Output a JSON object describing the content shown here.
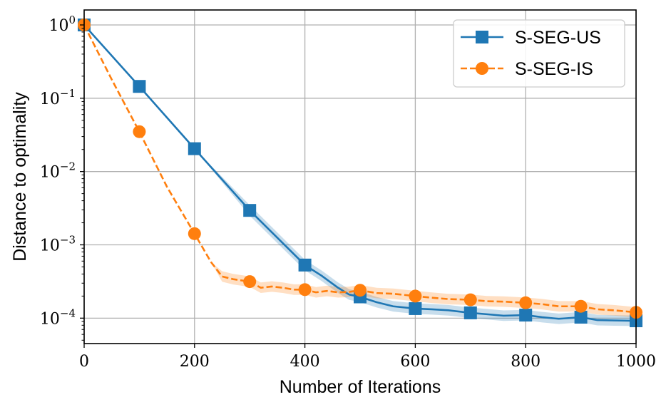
{
  "chart_data": {
    "type": "line",
    "xlabel": "Number of Iterations",
    "ylabel": "Distance to optimality",
    "xlim": [
      0,
      1000
    ],
    "ylim": [
      4.5e-05,
      1.6
    ],
    "yscale": "log",
    "grid": true,
    "legend_position": "top-right",
    "x_ticks": [
      0,
      200,
      400,
      600,
      800,
      1000
    ],
    "x_tick_labels": [
      "0",
      "200",
      "400",
      "600",
      "800",
      "1000"
    ],
    "y_ticks": [
      1,
      0.1,
      0.01,
      0.001,
      0.0001
    ],
    "y_tick_bases": [
      "10",
      "10",
      "10",
      "10",
      "10"
    ],
    "y_tick_exps": [
      "0",
      "−1",
      "−2",
      "−3",
      "−4"
    ],
    "series": [
      {
        "name": "S-SEG-US",
        "color": "#1f77b4",
        "linestyle": "solid",
        "marker": "square",
        "x": [
          0,
          100,
          200,
          300,
          400,
          430,
          460,
          480,
          500,
          530,
          560,
          600,
          630,
          660,
          700,
          730,
          760,
          800,
          830,
          860,
          900,
          930,
          960,
          1000
        ],
        "y": [
          1.0,
          0.145,
          0.0205,
          0.00295,
          0.00053,
          0.00038,
          0.00026,
          0.00021,
          0.000195,
          0.000165,
          0.000145,
          0.000135,
          0.000132,
          0.000128,
          0.000118,
          0.000113,
          0.000108,
          0.00011,
          0.000103,
          9.8e-05,
          0.000103,
          9.4e-05,
          9.3e-05,
          9.2e-05
        ],
        "markers_x": [
          0,
          100,
          200,
          300,
          400,
          500,
          600,
          700,
          800,
          900,
          1000
        ],
        "markers_y": [
          1.0,
          0.145,
          0.0205,
          0.00295,
          0.00053,
          0.000195,
          0.000135,
          0.000118,
          0.00011,
          0.000103,
          9.2e-05
        ]
      },
      {
        "name": "S-SEG-IS",
        "color": "#ff7f0e",
        "linestyle": "dashed",
        "marker": "circle",
        "x": [
          0,
          50,
          100,
          150,
          200,
          230,
          250,
          270,
          300,
          320,
          340,
          360,
          380,
          400,
          420,
          440,
          460,
          480,
          500,
          530,
          560,
          600,
          630,
          660,
          700,
          730,
          760,
          800,
          830,
          860,
          900,
          930,
          960,
          1000
        ],
        "y": [
          1.0,
          0.18,
          0.035,
          0.0062,
          0.00142,
          0.00058,
          0.00037,
          0.00034,
          0.000315,
          0.00026,
          0.00027,
          0.00026,
          0.000245,
          0.000245,
          0.000225,
          0.000235,
          0.000225,
          0.000228,
          0.00024,
          0.00022,
          0.000215,
          0.0002,
          0.00019,
          0.000182,
          0.000178,
          0.00017,
          0.000168,
          0.000162,
          0.000155,
          0.000145,
          0.000145,
          0.000132,
          0.000128,
          0.00012
        ],
        "markers_x": [
          0,
          100,
          200,
          300,
          400,
          500,
          600,
          700,
          800,
          900,
          1000
        ],
        "markers_y": [
          1.0,
          0.035,
          0.00142,
          0.000315,
          0.000245,
          0.00024,
          0.0002,
          0.000178,
          0.000162,
          0.000145,
          0.00012
        ]
      }
    ]
  }
}
